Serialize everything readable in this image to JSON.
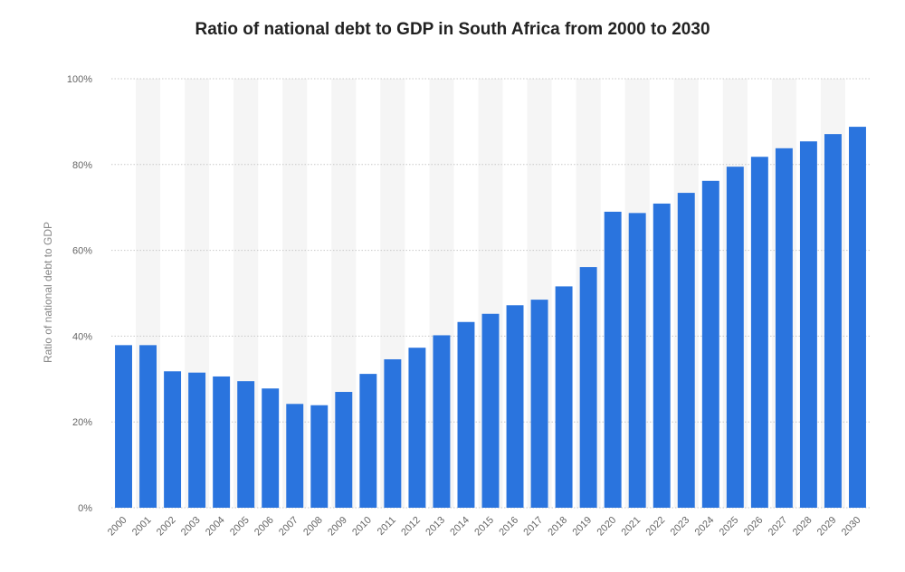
{
  "colors": {
    "bar": "#2a74de",
    "stripe": "#f5f5f5",
    "grid": "#c8c8c8"
  },
  "chart_data": {
    "type": "bar",
    "title": "Ratio of national debt to GDP in South Africa from 2000 to 2030",
    "xlabel": "",
    "ylabel": "Ratio of national debt to GDP",
    "ylim": [
      0,
      100
    ],
    "yticks": [
      0,
      20,
      40,
      60,
      80,
      100
    ],
    "ytick_labels": [
      "0%",
      "20%",
      "40%",
      "60%",
      "80%",
      "100%"
    ],
    "grid": true,
    "categories": [
      "2000",
      "2001",
      "2002",
      "2003",
      "2004",
      "2005",
      "2006",
      "2007",
      "2008",
      "2009",
      "2010",
      "2011",
      "2012",
      "2013",
      "2014",
      "2015",
      "2016",
      "2017",
      "2018",
      "2019",
      "2020",
      "2021",
      "2022",
      "2023",
      "2024",
      "2025",
      "2026",
      "2027",
      "2028",
      "2029",
      "2030"
    ],
    "values": [
      37.9,
      37.9,
      31.8,
      31.5,
      30.6,
      29.5,
      27.8,
      24.2,
      23.9,
      27,
      31.2,
      34.6,
      37.3,
      40.2,
      43.3,
      45.2,
      47.2,
      48.5,
      51.6,
      56.1,
      69,
      68.7,
      70.9,
      73.4,
      76.2,
      79.5,
      81.8,
      83.8,
      85.4,
      87.1,
      88.8
    ]
  }
}
